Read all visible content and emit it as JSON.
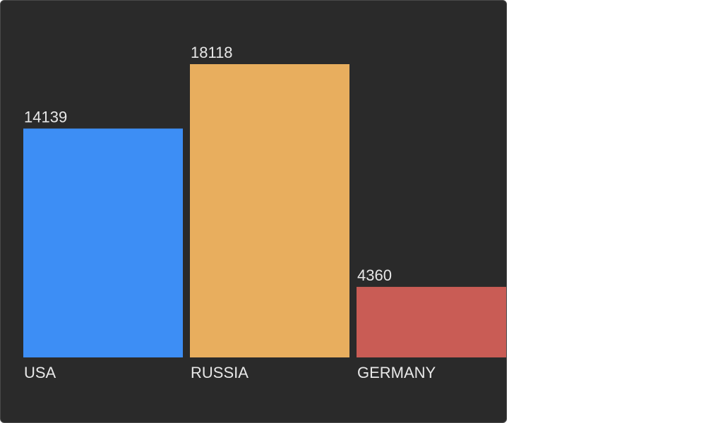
{
  "chart_data": {
    "type": "bar",
    "categories": [
      "USA",
      "RUSSIA",
      "GERMANY"
    ],
    "values": [
      14139,
      18118,
      4360
    ],
    "colors": [
      "#3d8ef5",
      "#e8ae5e",
      "#c95c55"
    ],
    "background": "#2a2a2a",
    "text_color": "#e8e8e8",
    "ylim": [
      0,
      18118
    ],
    "grid": false,
    "legend": "none"
  }
}
